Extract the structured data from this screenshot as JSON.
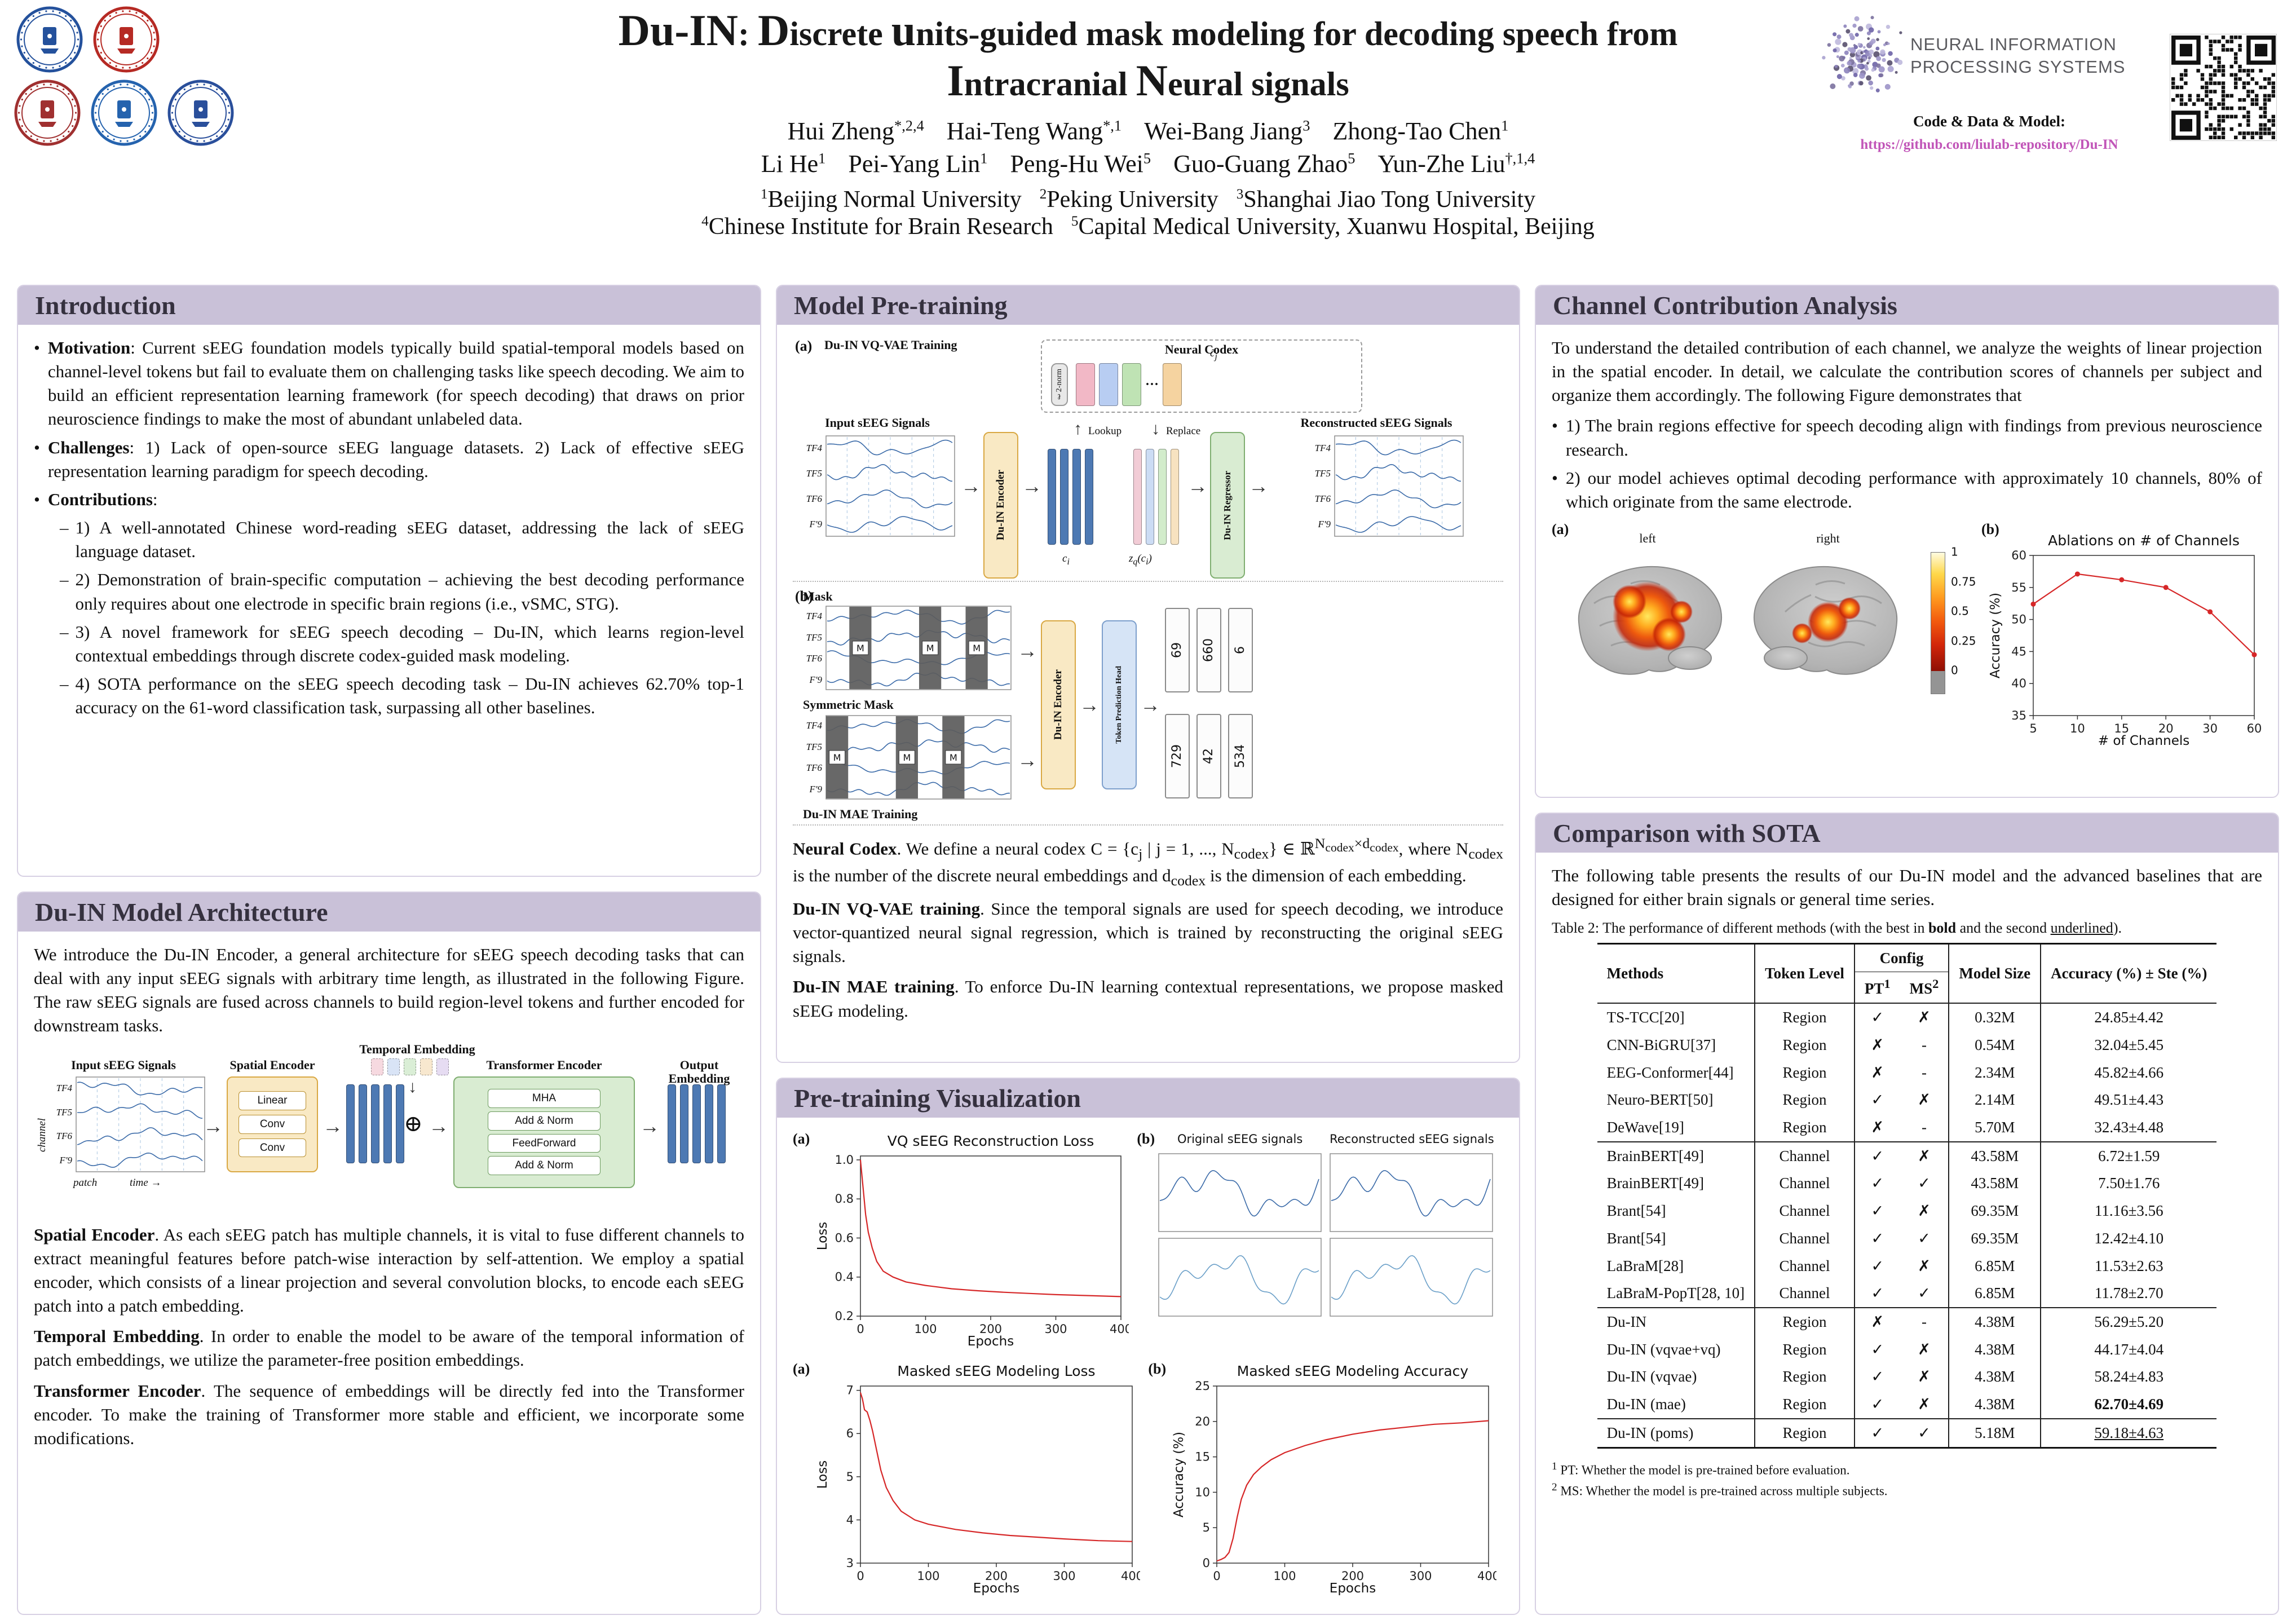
{
  "header": {
    "title_line1": [
      {
        "t": "Du-IN",
        "em": true
      },
      {
        "t": ": ",
        "em": false
      },
      {
        "t": "D",
        "em": true
      },
      {
        "t": "iscrete ",
        "em": false
      },
      {
        "t": "u",
        "em": true
      },
      {
        "t": "nits-guided mask modeling for decoding speech from",
        "em": false
      }
    ],
    "title_line2": [
      {
        "t": "I",
        "em": true
      },
      {
        "t": "ntracranial ",
        "em": false
      },
      {
        "t": "N",
        "em": true
      },
      {
        "t": "eural signals",
        "em": false
      }
    ],
    "author_lines": [
      [
        {
          "name": "Hui Zheng",
          "sup": "*,2,4"
        },
        {
          "name": "Hai-Teng Wang",
          "sup": "*,1"
        },
        {
          "name": "Wei-Bang Jiang",
          "sup": "3"
        },
        {
          "name": "Zhong-Tao Chen",
          "sup": "1"
        }
      ],
      [
        {
          "name": "Li He",
          "sup": "1"
        },
        {
          "name": "Pei-Yang Lin",
          "sup": "1"
        },
        {
          "name": "Peng-Hu Wei",
          "sup": "5"
        },
        {
          "name": "Guo-Guang Zhao",
          "sup": "5"
        },
        {
          "name": "Yun-Zhe Liu",
          "sup": "†,1,4"
        }
      ]
    ],
    "affil_lines": [
      [
        {
          "sup": "1",
          "name": "Beijing Normal University"
        },
        {
          "sup": "2",
          "name": "Peking University"
        },
        {
          "sup": "3",
          "name": "Shanghai Jiao Tong University"
        }
      ],
      [
        {
          "sup": "4",
          "name": "Chinese Institute for Brain Research"
        },
        {
          "sup": "5",
          "name": "Capital Medical University, Xuanwu Hospital, Beijing"
        }
      ]
    ],
    "logos": [
      {
        "name": "beijing-normal-university-logo",
        "color": "#24519c"
      },
      {
        "name": "peking-university-logo",
        "color": "#b62a24"
      },
      {
        "name": "shanghai-jiao-tong-university-logo",
        "color": "#a03030"
      },
      {
        "name": "cibr-logo",
        "color": "#2563ae"
      },
      {
        "name": "capital-medical-university-logo",
        "color": "#2a4f9b"
      }
    ],
    "neurips": {
      "line1": "NEURAL INFORMATION",
      "line2": "PROCESSING SYSTEMS"
    },
    "code_label": "Code & Data & Model:",
    "code_url": "https://github.com/liulab-repository/Du-IN"
  },
  "signals": {
    "channels": [
      "TF4",
      "TF5",
      "TF6",
      "F'9"
    ]
  },
  "intro": {
    "title": "Introduction",
    "bullets": [
      {
        "lead": "Motivation",
        "text": ": Current sEEG foundation models typically build spatial-temporal models based on channel-level tokens but fail to evaluate them on challenging tasks like speech decoding. We aim to build an efficient representation learning framework (for speech decoding) that draws on prior neuroscience findings to make the most of abundant unlabeled data."
      },
      {
        "lead": "Challenges",
        "text": ": 1) Lack of open-source sEEG language datasets. 2) Lack of effective sEEG representation learning paradigm for speech decoding."
      },
      {
        "lead": "Contributions",
        "text": ":",
        "subitems": [
          "1) A well-annotated Chinese word-reading sEEG dataset, addressing the lack of sEEG language dataset.",
          "2) Demonstration of brain-specific computation – achieving the best decoding performance only requires about one electrode in specific brain regions (i.e., vSMC, STG).",
          "3) A novel framework for sEEG speech decoding – Du-IN, which learns region-level contextual embeddings through discrete codex-guided mask modeling.",
          "4) SOTA performance on the sEEG speech decoding task – Du-IN achieves 62.70% top-1 accuracy on the 61-word classification task, surpassing all other baselines."
        ]
      }
    ]
  },
  "arch": {
    "title": "Du-IN Model Architecture",
    "intro": "We introduce the Du-IN Encoder, a general architecture for sEEG speech decoding tasks that can deal with any input sEEG signals with arbitrary time length, as illustrated in the following Figure. The raw sEEG signals are fused across channels to build region-level tokens and further encoded for downstream tasks.",
    "fig": {
      "input_label": "Input sEEG Signals",
      "time_label": "time",
      "channel_label": "channel",
      "patch_label": "patch",
      "spatial_label": "Spatial Encoder",
      "spatial_inner": [
        "Linear",
        "Conv",
        "Conv"
      ],
      "temporal_label": "Temporal Embedding",
      "transformer_label": "Transformer Encoder",
      "transformer_inner": [
        "MHA",
        "Add & Norm",
        "FeedForward",
        "Add & Norm"
      ],
      "output_label": "Output Embedding",
      "plus_symbol": "⊕"
    },
    "paragraphs": [
      {
        "lead": "Spatial Encoder",
        "text": ". As each sEEG patch has multiple channels, it is vital to fuse different channels to extract meaningful features before patch-wise interaction by self-attention. We employ a spatial encoder, which consists of a linear projection and several convolution blocks, to encode each sEEG patch into a patch embedding."
      },
      {
        "lead": "Temporal Embedding",
        "text": ". In order to enable the model to be aware of the temporal information of patch embeddings, we utilize the parameter-free position embeddings."
      },
      {
        "lead": "Transformer Encoder",
        "text": ". The sequence of embeddings will be directly fed into the Transformer encoder. To make the training of Transformer more stable and efficient, we incorporate some modifications."
      }
    ]
  },
  "pretrain": {
    "title": "Model Pre-training",
    "fig_a": {
      "tag": "(a)",
      "caption": "Du-IN VQ-VAE Training",
      "input_label": "Input sEEG Signals",
      "encoder_label": "Du-IN Encoder",
      "codex_label": "Neural Codex",
      "l2_label": "ℓ2-norm",
      "lookup_label": "Lookup",
      "replace_label": "Replace",
      "regressor_label": "Du-IN Regressor",
      "recon_label": "Reconstructed sEEG Signals",
      "ci_label": "c_{i}",
      "cj_label": "c̃_{j}",
      "zq_label": "z_{q}(c_{i})"
    },
    "fig_b": {
      "tag": "(b)",
      "mask_label": "Mask",
      "sym_label": "Symmetric Mask",
      "caption": "Du-IN MAE Training",
      "encoder_label": "Du-IN Encoder",
      "head_label": "Token Prediction Head",
      "tokens_top": [
        "69",
        "660",
        "6"
      ],
      "tokens_bottom": [
        "729",
        "42",
        "534"
      ]
    },
    "paragraphs": [
      {
        "lead": "Neural Codex",
        "text": ". We define a neural codex C = {c_{j} | j = 1, ..., N_{codex}} ∈ ℝ^{N_{codex}×d_{codex}}, where N_{codex} is the number of the discrete neural embeddings and d_{codex} is the dimension of each embedding."
      },
      {
        "lead": "Du-IN VQ-VAE training",
        "text": ". Since the temporal signals are used for speech decoding, we introduce vector-quantized neural signal regression, which is trained by reconstructing the original sEEG signals."
      },
      {
        "lead": "Du-IN MAE training",
        "text": ". To enforce Du-IN learning contextual representations, we propose masked sEEG modeling."
      }
    ]
  },
  "viz": {
    "title": "Pre-training Visualization",
    "row1_a_tag": "(a)",
    "row1_b_tag": "(b)",
    "orig_label": "Original sEEG signals",
    "recon_label": "Reconstructed sEEG signals",
    "row2_a_tag": "(a)",
    "row2_b_tag": "(b)"
  },
  "channel": {
    "title": "Channel Contribution Analysis",
    "para": "To understand the detailed contribution of each channel, we analyze the weights of linear projection in the spatial encoder. In detail, we calculate the contribution scores of channels per subject and organize them accordingly. The following Figure demonstrates that",
    "bullets": [
      "1) The brain regions effective for speech decoding align with findings from previous neuroscience research.",
      "2) our model achieves optimal decoding performance with approximately 10 channels, 80% of which originate from the same electrode."
    ],
    "fig_a_tag": "(a)",
    "fig_b_tag": "(b)",
    "left_label": "left",
    "right_label": "right",
    "colorbar_ticks": [
      "1",
      "0.75",
      "0.5",
      "0.25",
      "0"
    ]
  },
  "sota": {
    "title": "Comparison with SOTA",
    "para": "The following table presents the results of our Du-IN model and the advanced baselines that are designed for either brain signals or general time series.",
    "caption": "Table 2: The performance of different methods (with the best in **bold** and the second __underlined__).",
    "columns": {
      "methods": "Methods",
      "token": "Token Level",
      "config": "Config",
      "pt": "PT^{1}",
      "ms": "MS^{2}",
      "size": "Model Size",
      "acc": "Accuracy (%) ± Ste (%)"
    },
    "groups": [
      [
        {
          "method": "TS-TCC[20]",
          "token": "Region",
          "pt": "✓",
          "ms": "✗",
          "size": "0.32M",
          "acc": "24.85±4.42",
          "style": ""
        },
        {
          "method": "CNN-BiGRU[37]",
          "token": "Region",
          "pt": "✗",
          "ms": "-",
          "size": "0.54M",
          "acc": "32.04±5.45",
          "style": ""
        },
        {
          "method": "EEG-Conformer[44]",
          "token": "Region",
          "pt": "✗",
          "ms": "-",
          "size": "2.34M",
          "acc": "45.82±4.66",
          "style": ""
        },
        {
          "method": "Neuro-BERT[50]",
          "token": "Region",
          "pt": "✓",
          "ms": "✗",
          "size": "2.14M",
          "acc": "49.51±4.43",
          "style": ""
        },
        {
          "method": "DeWave[19]",
          "token": "Region",
          "pt": "✗",
          "ms": "-",
          "size": "5.70M",
          "acc": "32.43±4.48",
          "style": ""
        }
      ],
      [
        {
          "method": "BrainBERT[49]",
          "token": "Channel",
          "pt": "✓",
          "ms": "✗",
          "size": "43.58M",
          "acc": "6.72±1.59",
          "style": ""
        },
        {
          "method": "BrainBERT[49]",
          "token": "Channel",
          "pt": "✓",
          "ms": "✓",
          "size": "43.58M",
          "acc": "7.50±1.76",
          "style": ""
        },
        {
          "method": "Brant[54]",
          "token": "Channel",
          "pt": "✓",
          "ms": "✗",
          "size": "69.35M",
          "acc": "11.16±3.56",
          "style": ""
        },
        {
          "method": "Brant[54]",
          "token": "Channel",
          "pt": "✓",
          "ms": "✓",
          "size": "69.35M",
          "acc": "12.42±4.10",
          "style": ""
        },
        {
          "method": "LaBraM[28]",
          "token": "Channel",
          "pt": "✓",
          "ms": "✗",
          "size": "6.85M",
          "acc": "11.53±2.63",
          "style": ""
        },
        {
          "method": "LaBraM-PopT[28, 10]",
          "token": "Channel",
          "pt": "✓",
          "ms": "✓",
          "size": "6.85M",
          "acc": "11.78±2.70",
          "style": ""
        }
      ],
      [
        {
          "method": "Du-IN",
          "token": "Region",
          "pt": "✗",
          "ms": "-",
          "size": "4.38M",
          "acc": "56.29±5.20",
          "style": ""
        },
        {
          "method": "Du-IN (vqvae+vq)",
          "token": "Region",
          "pt": "✓",
          "ms": "✗",
          "size": "4.38M",
          "acc": "44.17±4.04",
          "style": ""
        },
        {
          "method": "Du-IN (vqvae)",
          "token": "Region",
          "pt": "✓",
          "ms": "✗",
          "size": "4.38M",
          "acc": "58.24±4.83",
          "style": ""
        },
        {
          "method": "Du-IN (mae)",
          "token": "Region",
          "pt": "✓",
          "ms": "✗",
          "size": "4.38M",
          "acc": "62.70±4.69",
          "style": "bold"
        }
      ],
      [
        {
          "method": "Du-IN (poms)",
          "token": "Region",
          "pt": "✓",
          "ms": "✓",
          "size": "5.18M",
          "acc": "59.18±4.63",
          "style": "underline"
        }
      ]
    ],
    "footnotes": [
      "^{1} PT: Whether the model is pre-trained before evaluation.",
      "^{2} MS: Whether the model is pre-trained across multiple subjects."
    ]
  },
  "chart_data": {
    "vq_loss": {
      "type": "line",
      "title": "VQ sEEG Reconstruction Loss",
      "xlabel": "Epochs",
      "ylabel": "Loss",
      "xlim": [
        0,
        400
      ],
      "ylim": [
        0.2,
        1.02
      ],
      "xticks": [
        0,
        100,
        200,
        300,
        400
      ],
      "yticks": [
        "0.2",
        "0.4",
        "0.6",
        "0.8",
        "1.0"
      ],
      "color": "#d62728",
      "points": [
        [
          0,
          1.0
        ],
        [
          4,
          0.86
        ],
        [
          8,
          0.72
        ],
        [
          12,
          0.63
        ],
        [
          18,
          0.55
        ],
        [
          25,
          0.48
        ],
        [
          35,
          0.43
        ],
        [
          50,
          0.4
        ],
        [
          70,
          0.375
        ],
        [
          100,
          0.357
        ],
        [
          140,
          0.34
        ],
        [
          180,
          0.33
        ],
        [
          220,
          0.322
        ],
        [
          260,
          0.316
        ],
        [
          300,
          0.31
        ],
        [
          350,
          0.305
        ],
        [
          400,
          0.3
        ]
      ]
    },
    "mask_loss": {
      "type": "line",
      "title": "Masked sEEG Modeling Loss",
      "xlabel": "Epochs",
      "ylabel": "Loss",
      "xlim": [
        0,
        400
      ],
      "ylim": [
        3,
        7.1
      ],
      "xticks": [
        0,
        100,
        200,
        300,
        400
      ],
      "yticks": [
        3,
        4,
        5,
        6,
        7
      ],
      "color": "#d62728",
      "points": [
        [
          0,
          6.95
        ],
        [
          3,
          6.8
        ],
        [
          6,
          6.55
        ],
        [
          10,
          6.5
        ],
        [
          14,
          6.3
        ],
        [
          18,
          6.05
        ],
        [
          24,
          5.6
        ],
        [
          30,
          5.15
        ],
        [
          38,
          4.75
        ],
        [
          48,
          4.45
        ],
        [
          60,
          4.2
        ],
        [
          80,
          4.0
        ],
        [
          100,
          3.9
        ],
        [
          140,
          3.78
        ],
        [
          180,
          3.7
        ],
        [
          220,
          3.64
        ],
        [
          260,
          3.6
        ],
        [
          300,
          3.56
        ],
        [
          350,
          3.52
        ],
        [
          400,
          3.5
        ]
      ]
    },
    "mask_acc": {
      "type": "line",
      "title": "Masked sEEG Modeling Accuracy",
      "xlabel": "Epochs",
      "ylabel": "Accuracy (%)",
      "xlim": [
        0,
        400
      ],
      "ylim": [
        0,
        25
      ],
      "xticks": [
        0,
        100,
        200,
        300,
        400
      ],
      "yticks": [
        0,
        5,
        10,
        15,
        20,
        25
      ],
      "color": "#d62728",
      "points": [
        [
          0,
          0.3
        ],
        [
          6,
          0.5
        ],
        [
          12,
          0.8
        ],
        [
          18,
          1.5
        ],
        [
          24,
          3.5
        ],
        [
          30,
          6.5
        ],
        [
          36,
          9.0
        ],
        [
          44,
          11.0
        ],
        [
          54,
          12.5
        ],
        [
          66,
          13.6
        ],
        [
          80,
          14.6
        ],
        [
          100,
          15.6
        ],
        [
          130,
          16.6
        ],
        [
          160,
          17.4
        ],
        [
          200,
          18.2
        ],
        [
          240,
          18.8
        ],
        [
          280,
          19.2
        ],
        [
          320,
          19.6
        ],
        [
          360,
          19.8
        ],
        [
          400,
          20.1
        ]
      ]
    },
    "ablation": {
      "type": "line",
      "title": "Ablations on # of Channels",
      "xlabel": "# of Channels",
      "ylabel": "Accuracy (%)",
      "categories": [
        5,
        10,
        15,
        20,
        30,
        60
      ],
      "values": [
        52.4,
        57.1,
        56.2,
        55.0,
        51.2,
        44.5
      ],
      "ylim": [
        35,
        60
      ],
      "yticks": [
        35,
        40,
        45,
        50,
        55,
        60
      ],
      "color": "#d62728",
      "markers": true
    }
  }
}
